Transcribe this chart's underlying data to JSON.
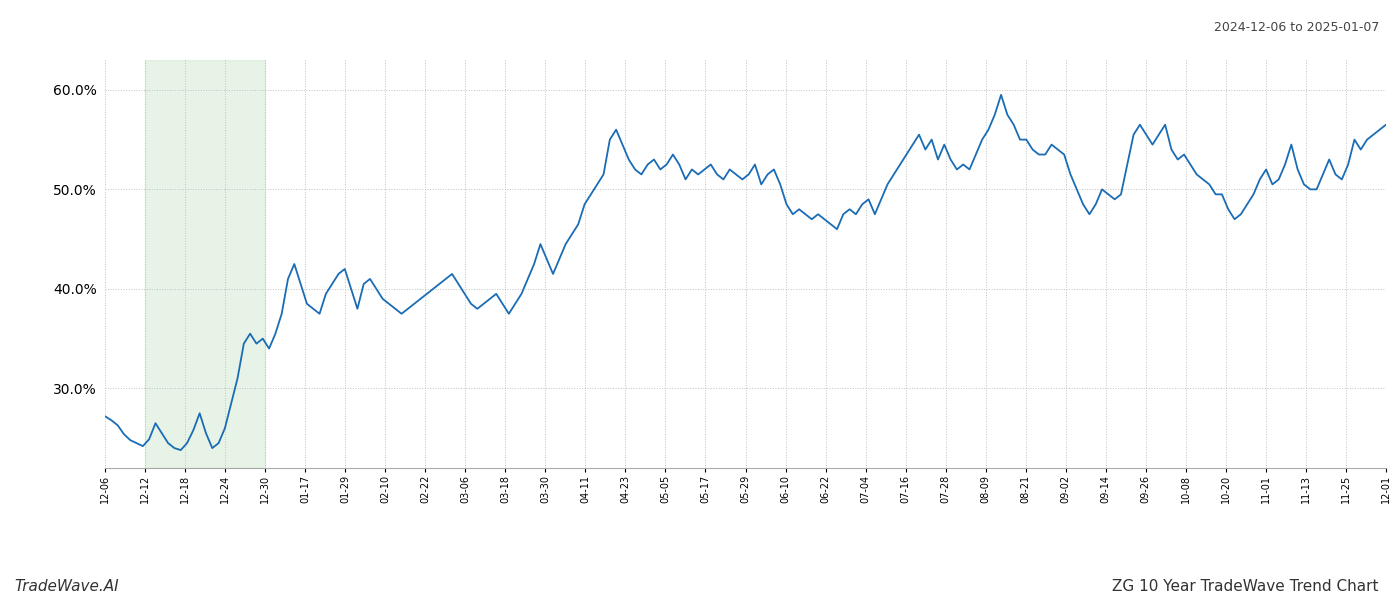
{
  "title_top_right": "2024-12-06 to 2025-01-07",
  "title_bottom_left": "TradeWave.AI",
  "title_bottom_right": "ZG 10 Year TradeWave Trend Chart",
  "line_color": "#1a6cb5",
  "line_width": 1.3,
  "highlight_color": "#c8e6c9",
  "highlight_alpha": 0.45,
  "background_color": "#ffffff",
  "grid_color": "#bbbbbb",
  "ylim": [
    22.0,
    63.0
  ],
  "yticks": [
    30.0,
    40.0,
    50.0,
    60.0
  ],
  "x_labels": [
    "12-06",
    "12-12",
    "12-18",
    "12-24",
    "12-30",
    "01-17",
    "01-29",
    "02-10",
    "02-22",
    "03-06",
    "03-18",
    "03-30",
    "04-11",
    "04-23",
    "05-05",
    "05-17",
    "05-29",
    "06-10",
    "06-22",
    "07-04",
    "07-16",
    "07-28",
    "08-09",
    "08-21",
    "09-02",
    "09-14",
    "09-26",
    "10-08",
    "10-20",
    "11-01",
    "11-13",
    "11-25",
    "12-01"
  ],
  "highlight_label_start": "12-12",
  "highlight_label_end": "12-30",
  "data_y": [
    27.2,
    26.8,
    26.3,
    25.4,
    24.8,
    24.5,
    24.2,
    24.9,
    26.5,
    25.5,
    24.5,
    24.0,
    23.8,
    24.5,
    25.8,
    27.5,
    25.5,
    24.0,
    24.5,
    26.0,
    28.5,
    31.0,
    34.5,
    35.5,
    34.5,
    35.0,
    34.0,
    35.5,
    37.5,
    41.0,
    42.5,
    40.5,
    38.5,
    38.0,
    37.5,
    39.5,
    40.5,
    41.5,
    42.0,
    40.0,
    38.0,
    40.5,
    41.0,
    40.0,
    39.0,
    38.5,
    38.0,
    37.5,
    38.0,
    38.5,
    39.0,
    39.5,
    40.0,
    40.5,
    41.0,
    41.5,
    40.5,
    39.5,
    38.5,
    38.0,
    38.5,
    39.0,
    39.5,
    38.5,
    37.5,
    38.5,
    39.5,
    41.0,
    42.5,
    44.5,
    43.0,
    41.5,
    43.0,
    44.5,
    45.5,
    46.5,
    48.5,
    49.5,
    50.5,
    51.5,
    55.0,
    56.0,
    54.5,
    53.0,
    52.0,
    51.5,
    52.5,
    53.0,
    52.0,
    52.5,
    53.5,
    52.5,
    51.0,
    52.0,
    51.5,
    52.0,
    52.5,
    51.5,
    51.0,
    52.0,
    51.5,
    51.0,
    51.5,
    52.5,
    50.5,
    51.5,
    52.0,
    50.5,
    48.5,
    47.5,
    48.0,
    47.5,
    47.0,
    47.5,
    47.0,
    46.5,
    46.0,
    47.5,
    48.0,
    47.5,
    48.5,
    49.0,
    47.5,
    49.0,
    50.5,
    51.5,
    52.5,
    53.5,
    54.5,
    55.5,
    54.0,
    55.0,
    53.0,
    54.5,
    53.0,
    52.0,
    52.5,
    52.0,
    53.5,
    55.0,
    56.0,
    57.5,
    59.5,
    57.5,
    56.5,
    55.0,
    55.0,
    54.0,
    53.5,
    53.5,
    54.5,
    54.0,
    53.5,
    51.5,
    50.0,
    48.5,
    47.5,
    48.5,
    50.0,
    49.5,
    49.0,
    49.5,
    52.5,
    55.5,
    56.5,
    55.5,
    54.5,
    55.5,
    56.5,
    54.0,
    53.0,
    53.5,
    52.5,
    51.5,
    51.0,
    50.5,
    49.5,
    49.5,
    48.0,
    47.0,
    47.5,
    48.5,
    49.5,
    51.0,
    52.0,
    50.5,
    51.0,
    52.5,
    54.5,
    52.0,
    50.5,
    50.0,
    50.0,
    51.5,
    53.0,
    51.5,
    51.0,
    52.5,
    55.0,
    54.0,
    55.0,
    55.5,
    56.0,
    56.5
  ]
}
